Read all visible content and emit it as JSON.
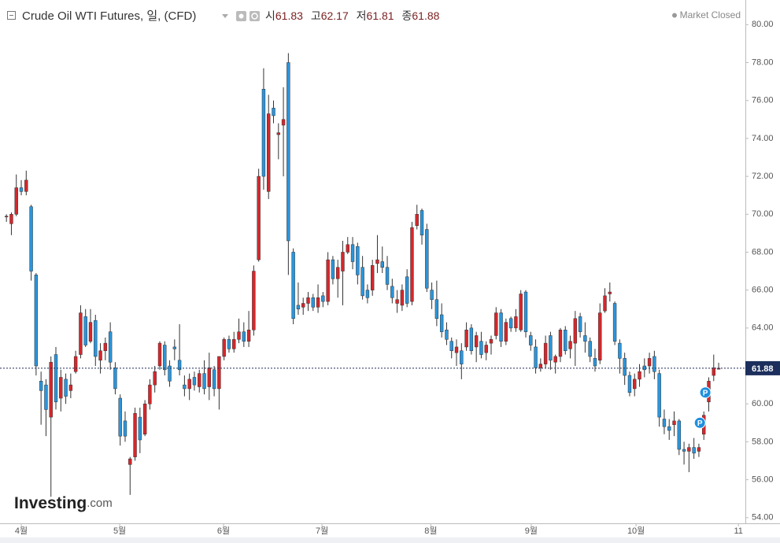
{
  "chart_data": {
    "type": "candlestick",
    "title": "Crude Oil WTI Futures, 일, (CFD)",
    "status": "Market Closed",
    "ohlc_labels": {
      "open": "시",
      "high": "고",
      "low": "저",
      "close": "종"
    },
    "watermark": {
      "main": "Investing",
      "suffix": ".com"
    },
    "up_color": "#d7262b",
    "down_color": "#2a95dc",
    "wick_color": "#333333",
    "last_price_color": "#1c2f5c",
    "xlim": [
      -1.3,
      149.4
    ],
    "xticks": [
      {
        "value": 3,
        "label": "4월"
      },
      {
        "value": 22.9,
        "label": "5월"
      },
      {
        "value": 43.9,
        "label": "6월"
      },
      {
        "value": 63.8,
        "label": "7월"
      },
      {
        "value": 85.8,
        "label": "8월"
      },
      {
        "value": 106.1,
        "label": "9월"
      },
      {
        "value": 127.3,
        "label": "10월"
      },
      {
        "value": 148,
        "label": "11"
      }
    ],
    "ylim": [
      53.7,
      81.3
    ],
    "yticks": [
      {
        "value": 54,
        "label": "54.00"
      },
      {
        "value": 56,
        "label": "56.00"
      },
      {
        "value": 58,
        "label": "58.00"
      },
      {
        "value": 60,
        "label": "60.00"
      },
      {
        "value": 62,
        "label": "62.00"
      },
      {
        "value": 64,
        "label": "64.00"
      },
      {
        "value": 66,
        "label": "66.00"
      },
      {
        "value": 68,
        "label": "68.00"
      },
      {
        "value": 70,
        "label": "70.00"
      },
      {
        "value": 72,
        "label": "72.00"
      },
      {
        "value": 74,
        "label": "74.00"
      },
      {
        "value": 76,
        "label": "76.00"
      },
      {
        "value": 78,
        "label": "78.00"
      },
      {
        "value": 80,
        "label": "80.00"
      }
    ],
    "markers": [
      {
        "index": 140.2,
        "price": 59.0,
        "label": "P"
      },
      {
        "index": 141.3,
        "price": 60.6,
        "label": "P"
      }
    ],
    "open": [
      69.9,
      69.5,
      70.0,
      71.4,
      71.2,
      70.4,
      66.8,
      61.2,
      61.0,
      59.3,
      62.6,
      60.3,
      61.3,
      60.7,
      61.7,
      62.6,
      64.6,
      63.3,
      64.4,
      62.3,
      62.8,
      63.8,
      61.9,
      60.3,
      59.1,
      56.8,
      57.2,
      59.3,
      58.4,
      60.0,
      61.0,
      62.0,
      63.1,
      62.0,
      63.0,
      62.3,
      61.0,
      60.8,
      61.4,
      60.9,
      61.6,
      60.9,
      61.8,
      60.8,
      62.5,
      63.4,
      62.9,
      63.4,
      63.8,
      63.3,
      63.9,
      67.6,
      76.6,
      71.2,
      75.6,
      74.2,
      74.7,
      78.0,
      68.0,
      65.2,
      65.1,
      65.3,
      65.6,
      65.1,
      65.7,
      65.4,
      67.6,
      66.6,
      67.0,
      68.0,
      68.4,
      68.3,
      67.2,
      66.0,
      66.0,
      67.4,
      67.5,
      67.2,
      66.2,
      65.3,
      65.2,
      66.7,
      65.4,
      69.4,
      70.2,
      69.2,
      66.0,
      65.5,
      64.7,
      63.9,
      63.3,
      62.7,
      62.8,
      63.0,
      64.0,
      63.0,
      63.3,
      62.7,
      63.2,
      63.6,
      64.8,
      63.3,
      64.5,
      64.0,
      63.9,
      65.9,
      63.6,
      63.0,
      61.9,
      62.1,
      63.6,
      62.2,
      62.5,
      63.9,
      62.9,
      63.2,
      64.6,
      63.6,
      63.3,
      62.4,
      62.3,
      64.9,
      65.8,
      65.3,
      63.2,
      62.4,
      61.5,
      60.8,
      61.3,
      62.0,
      62.0,
      62.5,
      61.6,
      59.2,
      58.8,
      58.9,
      59.1,
      57.6,
      57.5,
      57.7,
      57.5,
      58.4,
      60.1,
      61.5,
      61.83
    ],
    "high": [
      70.0,
      70.1,
      72.1,
      71.8,
      72.3,
      70.5,
      66.9,
      61.7,
      61.3,
      62.5,
      63.0,
      61.8,
      61.6,
      61.6,
      62.8,
      65.2,
      65.0,
      65.0,
      64.7,
      63.2,
      63.5,
      64.3,
      62.2,
      60.5,
      59.6,
      57.2,
      59.8,
      59.8,
      60.2,
      61.3,
      62.0,
      63.3,
      63.3,
      62.3,
      63.4,
      64.2,
      61.5,
      61.6,
      61.7,
      61.8,
      62.3,
      62.7,
      62.0,
      62.5,
      63.5,
      63.6,
      63.8,
      64.5,
      64.3,
      64.9,
      67.3,
      72.4,
      77.7,
      76.3,
      76.0,
      74.8,
      76.7,
      78.5,
      68.2,
      66.4,
      65.6,
      65.9,
      65.8,
      66.3,
      65.9,
      68.0,
      67.8,
      67.6,
      68.6,
      68.8,
      68.8,
      68.5,
      67.8,
      66.3,
      67.6,
      68.9,
      68.3,
      67.8,
      66.6,
      66.0,
      66.3,
      67.1,
      69.6,
      70.5,
      70.3,
      69.5,
      66.4,
      66.5,
      65.3,
      64.3,
      63.5,
      63.4,
      63.2,
      64.3,
      64.2,
      63.8,
      63.8,
      63.3,
      63.6,
      65.1,
      65.0,
      64.5,
      64.6,
      65.0,
      66.0,
      66.0,
      63.8,
      63.4,
      62.4,
      63.6,
      63.8,
      62.6,
      64.0,
      64.1,
      63.6,
      64.9,
      64.8,
      64.3,
      63.5,
      62.9,
      65.3,
      66.1,
      66.4,
      65.4,
      63.4,
      62.7,
      61.7,
      61.6,
      62.1,
      62.4,
      62.7,
      62.8,
      61.8,
      59.7,
      59.2,
      59.6,
      59.2,
      58.0,
      57.9,
      58.2,
      57.9,
      59.6,
      61.4,
      62.6,
      62.17
    ],
    "low": [
      69.6,
      68.9,
      69.9,
      71.0,
      71.0,
      66.5,
      61.5,
      58.9,
      58.3,
      55.1,
      59.7,
      59.6,
      60.0,
      60.3,
      61.6,
      62.4,
      63.0,
      63.2,
      62.0,
      61.6,
      62.3,
      61.8,
      60.5,
      57.8,
      58.0,
      55.2,
      57.0,
      57.4,
      58.3,
      59.7,
      60.6,
      61.8,
      61.5,
      60.9,
      62.3,
      61.5,
      60.4,
      60.2,
      60.7,
      60.6,
      60.5,
      60.2,
      60.4,
      59.7,
      62.3,
      62.7,
      62.7,
      63.2,
      63.0,
      63.0,
      63.6,
      67.5,
      71.3,
      70.8,
      74.8,
      72.9,
      72.0,
      66.8,
      64.2,
      64.7,
      64.7,
      64.9,
      64.9,
      64.8,
      65.1,
      65.2,
      66.3,
      65.6,
      65.2,
      67.9,
      67.1,
      66.3,
      65.5,
      65.3,
      65.7,
      66.9,
      66.9,
      66.0,
      65.3,
      64.8,
      64.9,
      65.1,
      65.2,
      69.2,
      68.4,
      65.9,
      65.0,
      64.1,
      63.5,
      63.1,
      62.4,
      62.0,
      61.3,
      62.8,
      62.6,
      62.2,
      62.4,
      62.3,
      62.6,
      63.4,
      63.0,
      63.1,
      63.8,
      63.8,
      63.8,
      63.5,
      62.8,
      61.6,
      61.7,
      61.9,
      61.8,
      61.6,
      62.2,
      62.6,
      62.4,
      62.0,
      63.5,
      62.7,
      62.2,
      61.7,
      62.1,
      64.8,
      65.4,
      63.1,
      61.6,
      61.0,
      60.4,
      60.4,
      60.9,
      61.4,
      61.6,
      61.3,
      58.8,
      58.4,
      58.1,
      58.3,
      57.3,
      56.8,
      56.4,
      57.1,
      57.2,
      58.1,
      59.6,
      61.2,
      61.81
    ],
    "close": [
      69.9,
      70.0,
      71.4,
      71.2,
      71.8,
      67.0,
      62.0,
      60.7,
      59.7,
      62.2,
      60.1,
      61.4,
      60.4,
      61.0,
      62.5,
      64.8,
      63.1,
      64.3,
      62.5,
      62.8,
      63.2,
      62.2,
      60.8,
      58.3,
      58.3,
      57.1,
      59.5,
      58.1,
      60.0,
      61.0,
      61.7,
      63.2,
      61.8,
      61.2,
      62.9,
      61.8,
      60.8,
      61.3,
      61.0,
      61.6,
      60.8,
      61.9,
      60.8,
      62.5,
      63.4,
      62.9,
      63.4,
      63.8,
      63.3,
      63.9,
      67.0,
      72.0,
      72.0,
      75.3,
      75.2,
      74.3,
      75.0,
      68.6,
      64.5,
      65.0,
      65.3,
      65.6,
      65.1,
      65.6,
      65.4,
      67.6,
      66.6,
      67.2,
      68.0,
      68.4,
      67.5,
      66.8,
      65.7,
      65.6,
      67.3,
      67.6,
      67.2,
      66.3,
      65.6,
      65.5,
      66.0,
      65.3,
      69.3,
      70.0,
      68.9,
      66.1,
      65.5,
      64.5,
      63.8,
      63.4,
      62.8,
      63.0,
      62.1,
      63.9,
      62.8,
      63.6,
      62.6,
      63.1,
      63.4,
      64.8,
      63.3,
      64.3,
      64.0,
      64.6,
      65.8,
      63.8,
      63.1,
      61.9,
      62.1,
      63.2,
      62.3,
      62.5,
      63.9,
      62.8,
      63.3,
      64.5,
      63.8,
      63.3,
      62.5,
      62.0,
      64.8,
      65.7,
      65.9,
      63.3,
      62.4,
      61.5,
      60.6,
      61.3,
      61.7,
      61.8,
      62.4,
      61.7,
      59.3,
      58.8,
      58.6,
      59.1,
      57.6,
      57.5,
      57.7,
      57.4,
      57.7,
      59.4,
      61.2,
      61.9,
      61.88
    ]
  }
}
